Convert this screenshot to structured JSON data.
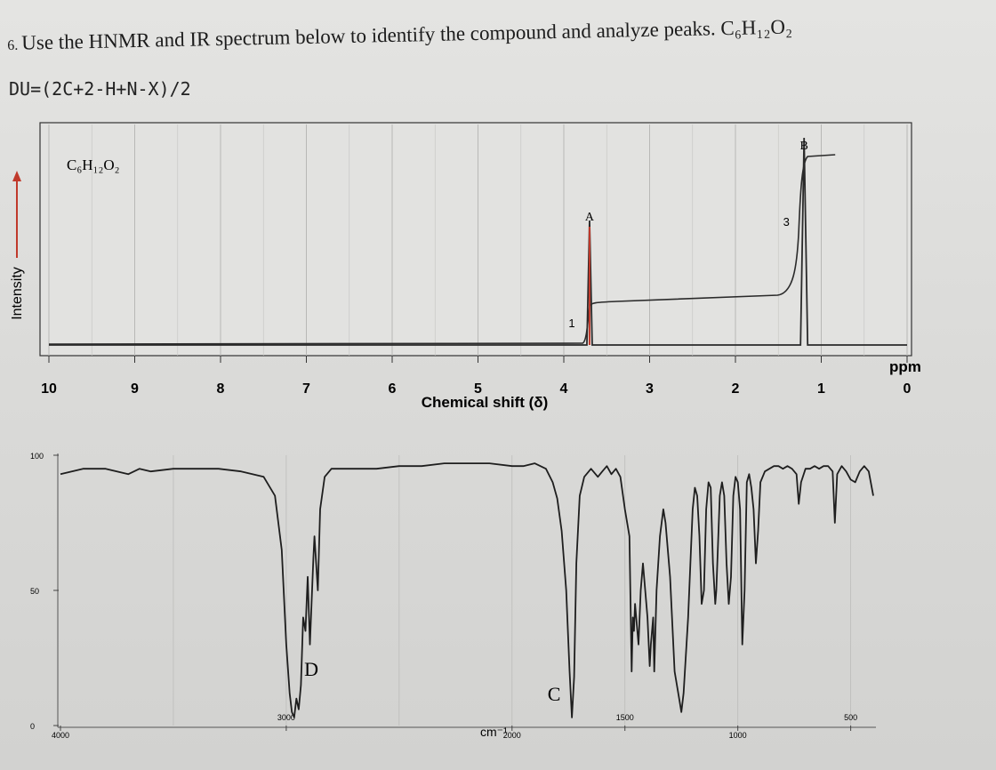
{
  "question": {
    "number": "6.",
    "text": "Use the HNMR and IR spectrum below to identify the compound and analyze peaks. C₆H₁₂O₂",
    "du_formula": "DU=(2C+2-H+N-X)/2"
  },
  "chart_data": [
    {
      "type": "line",
      "name": "1H NMR spectrum",
      "formula_label": "C₆H₁₂O₂",
      "xlabel": "Chemical shift (δ)",
      "ylabel": "Intensity",
      "x_unit": "ppm",
      "xlim": [
        10,
        0
      ],
      "x_ticks": [
        "10",
        "9",
        "8",
        "7",
        "6",
        "5",
        "4",
        "3",
        "2",
        "1",
        "0"
      ],
      "peaks": [
        {
          "label": "A",
          "shift": 3.7,
          "integration": "1"
        },
        {
          "label": "B",
          "shift": 1.2,
          "integration": "3"
        }
      ],
      "colors": {
        "peak_A": "#c0392b",
        "trace": "#2a2a2a",
        "grid": "#b8b8b6"
      }
    },
    {
      "type": "line",
      "name": "IR spectrum",
      "xlabel": "cm⁻¹",
      "y_ticks": [
        "100",
        "50",
        "0"
      ],
      "x_ticks": [
        "4000",
        "3000",
        "2000",
        "1500",
        "1000",
        "500"
      ],
      "xlim": [
        4000,
        400
      ],
      "ylim": [
        0,
        100
      ],
      "annotations": [
        {
          "label": "D",
          "wavenumber": 2960
        },
        {
          "label": "C",
          "wavenumber": 1735
        }
      ],
      "points": [
        [
          4000,
          93
        ],
        [
          3900,
          95
        ],
        [
          3800,
          95
        ],
        [
          3700,
          93
        ],
        [
          3650,
          95
        ],
        [
          3600,
          94
        ],
        [
          3500,
          95
        ],
        [
          3400,
          95
        ],
        [
          3300,
          95
        ],
        [
          3200,
          94
        ],
        [
          3100,
          92
        ],
        [
          3050,
          85
        ],
        [
          3020,
          65
        ],
        [
          3000,
          30
        ],
        [
          2985,
          12
        ],
        [
          2975,
          5
        ],
        [
          2965,
          3
        ],
        [
          2955,
          10
        ],
        [
          2945,
          6
        ],
        [
          2935,
          15
        ],
        [
          2925,
          40
        ],
        [
          2915,
          35
        ],
        [
          2905,
          55
        ],
        [
          2895,
          30
        ],
        [
          2880,
          62
        ],
        [
          2875,
          70
        ],
        [
          2860,
          50
        ],
        [
          2850,
          80
        ],
        [
          2830,
          92
        ],
        [
          2800,
          95
        ],
        [
          2700,
          95
        ],
        [
          2600,
          95
        ],
        [
          2500,
          96
        ],
        [
          2400,
          96
        ],
        [
          2300,
          97
        ],
        [
          2200,
          97
        ],
        [
          2100,
          97
        ],
        [
          2000,
          96
        ],
        [
          1950,
          96
        ],
        [
          1900,
          97
        ],
        [
          1850,
          95
        ],
        [
          1820,
          90
        ],
        [
          1800,
          84
        ],
        [
          1780,
          72
        ],
        [
          1760,
          50
        ],
        [
          1745,
          20
        ],
        [
          1735,
          3
        ],
        [
          1725,
          18
        ],
        [
          1715,
          60
        ],
        [
          1700,
          85
        ],
        [
          1680,
          92
        ],
        [
          1650,
          95
        ],
        [
          1620,
          92
        ],
        [
          1600,
          94
        ],
        [
          1580,
          96
        ],
        [
          1560,
          93
        ],
        [
          1540,
          95
        ],
        [
          1520,
          92
        ],
        [
          1500,
          80
        ],
        [
          1480,
          70
        ],
        [
          1470,
          20
        ],
        [
          1465,
          40
        ],
        [
          1460,
          35
        ],
        [
          1455,
          45
        ],
        [
          1440,
          30
        ],
        [
          1430,
          50
        ],
        [
          1420,
          60
        ],
        [
          1400,
          40
        ],
        [
          1390,
          22
        ],
        [
          1385,
          30
        ],
        [
          1375,
          40
        ],
        [
          1370,
          20
        ],
        [
          1360,
          50
        ],
        [
          1345,
          70
        ],
        [
          1330,
          80
        ],
        [
          1320,
          75
        ],
        [
          1300,
          55
        ],
        [
          1280,
          20
        ],
        [
          1260,
          10
        ],
        [
          1250,
          5
        ],
        [
          1240,
          12
        ],
        [
          1220,
          40
        ],
        [
          1200,
          80
        ],
        [
          1190,
          88
        ],
        [
          1180,
          85
        ],
        [
          1170,
          70
        ],
        [
          1160,
          45
        ],
        [
          1150,
          50
        ],
        [
          1140,
          80
        ],
        [
          1130,
          90
        ],
        [
          1120,
          88
        ],
        [
          1110,
          60
        ],
        [
          1100,
          45
        ],
        [
          1095,
          50
        ],
        [
          1080,
          85
        ],
        [
          1070,
          90
        ],
        [
          1060,
          85
        ],
        [
          1050,
          60
        ],
        [
          1040,
          45
        ],
        [
          1030,
          55
        ],
        [
          1020,
          85
        ],
        [
          1010,
          92
        ],
        [
          1000,
          90
        ],
        [
          990,
          80
        ],
        [
          980,
          30
        ],
        [
          970,
          50
        ],
        [
          960,
          90
        ],
        [
          950,
          93
        ],
        [
          940,
          88
        ],
        [
          930,
          80
        ],
        [
          920,
          60
        ],
        [
          910,
          72
        ],
        [
          900,
          90
        ],
        [
          880,
          94
        ],
        [
          860,
          95
        ],
        [
          840,
          96
        ],
        [
          820,
          96
        ],
        [
          800,
          95
        ],
        [
          780,
          96
        ],
        [
          760,
          95
        ],
        [
          740,
          93
        ],
        [
          730,
          82
        ],
        [
          720,
          90
        ],
        [
          700,
          95
        ],
        [
          680,
          95
        ],
        [
          660,
          96
        ],
        [
          640,
          95
        ],
        [
          620,
          96
        ],
        [
          600,
          96
        ],
        [
          580,
          94
        ],
        [
          570,
          75
        ],
        [
          560,
          93
        ],
        [
          540,
          96
        ],
        [
          520,
          94
        ],
        [
          500,
          91
        ],
        [
          480,
          90
        ],
        [
          460,
          94
        ],
        [
          440,
          96
        ],
        [
          420,
          94
        ],
        [
          400,
          85
        ]
      ],
      "colors": {
        "trace": "#1e1e1e",
        "grid": "#bcbcba"
      }
    }
  ]
}
